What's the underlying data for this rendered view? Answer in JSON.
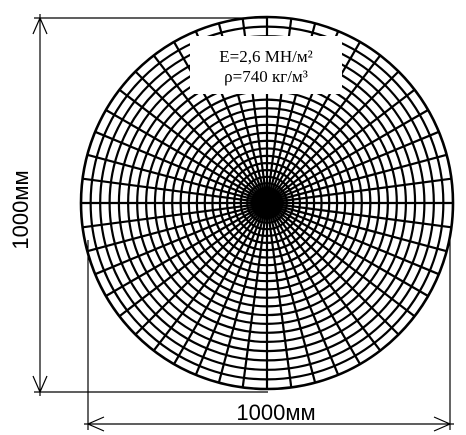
{
  "dimensions": {
    "height_label": "1000мм",
    "width_label": "1000мм"
  },
  "properties": {
    "modulus": "E=2,6 МН/м²",
    "density": "ρ=740 кг/м³"
  },
  "mesh": {
    "radial_divisions": 24,
    "circumferential_lines": 48,
    "line_color": "#000000"
  }
}
